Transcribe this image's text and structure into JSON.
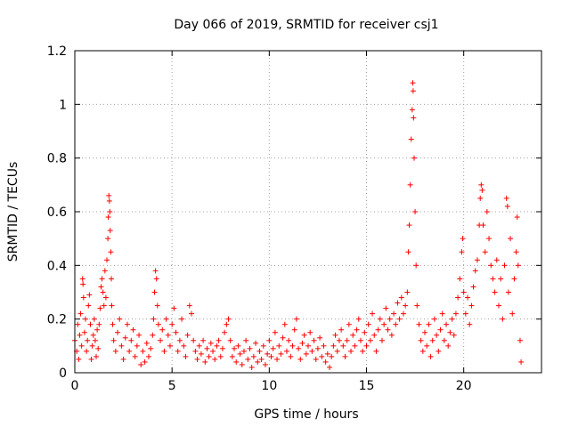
{
  "chart_data": {
    "type": "scatter",
    "title": "Day 066 of 2019, SRMTID for receiver csj1",
    "xlabel": "GPS time / hours",
    "ylabel": "SRMTID / TECUs",
    "xlim": [
      0,
      24
    ],
    "ylim": [
      0,
      1.2
    ],
    "xticks": [
      0,
      5,
      10,
      15,
      20
    ],
    "yticks": [
      0,
      0.2,
      0.4,
      0.6,
      0.8,
      1,
      1.2
    ],
    "xtick_labels": [
      "0",
      "5",
      "10",
      "15",
      "20"
    ],
    "ytick_labels": [
      "0",
      "0.2",
      "0.4",
      "0.6",
      "0.8",
      "1",
      "1.2"
    ],
    "grid": true,
    "marker": "+",
    "color": "#ff0000",
    "series": [
      {
        "name": "SRMTID",
        "points": [
          [
            0.0,
            0.12
          ],
          [
            0.1,
            0.08
          ],
          [
            0.15,
            0.18
          ],
          [
            0.2,
            0.05
          ],
          [
            0.25,
            0.14
          ],
          [
            0.3,
            0.22
          ],
          [
            0.35,
            0.1
          ],
          [
            0.4,
            0.35
          ],
          [
            0.42,
            0.33
          ],
          [
            0.45,
            0.28
          ],
          [
            0.5,
            0.15
          ],
          [
            0.55,
            0.2
          ],
          [
            0.6,
            0.08
          ],
          [
            0.65,
            0.12
          ],
          [
            0.7,
            0.25
          ],
          [
            0.75,
            0.29
          ],
          [
            0.8,
            0.18
          ],
          [
            0.85,
            0.05
          ],
          [
            0.9,
            0.1
          ],
          [
            0.95,
            0.14
          ],
          [
            1.0,
            0.2
          ],
          [
            1.05,
            0.12
          ],
          [
            1.1,
            0.06
          ],
          [
            1.15,
            0.16
          ],
          [
            1.2,
            0.09
          ],
          [
            1.25,
            0.18
          ],
          [
            1.3,
            0.24
          ],
          [
            1.35,
            0.32
          ],
          [
            1.4,
            0.35
          ],
          [
            1.45,
            0.3
          ],
          [
            1.5,
            0.25
          ],
          [
            1.55,
            0.38
          ],
          [
            1.6,
            0.28
          ],
          [
            1.65,
            0.42
          ],
          [
            1.7,
            0.5
          ],
          [
            1.72,
            0.58
          ],
          [
            1.75,
            0.66
          ],
          [
            1.78,
            0.64
          ],
          [
            1.8,
            0.6
          ],
          [
            1.82,
            0.53
          ],
          [
            1.85,
            0.45
          ],
          [
            1.88,
            0.35
          ],
          [
            1.9,
            0.25
          ],
          [
            1.95,
            0.18
          ],
          [
            2.0,
            0.12
          ],
          [
            2.1,
            0.08
          ],
          [
            2.2,
            0.15
          ],
          [
            2.3,
            0.2
          ],
          [
            2.4,
            0.1
          ],
          [
            2.5,
            0.05
          ],
          [
            2.6,
            0.13
          ],
          [
            2.7,
            0.18
          ],
          [
            2.8,
            0.08
          ],
          [
            2.9,
            0.12
          ],
          [
            3.0,
            0.16
          ],
          [
            3.1,
            0.06
          ],
          [
            3.2,
            0.1
          ],
          [
            3.3,
            0.14
          ],
          [
            3.4,
            0.03
          ],
          [
            3.5,
            0.08
          ],
          [
            3.6,
            0.04
          ],
          [
            3.7,
            0.11
          ],
          [
            3.8,
            0.06
          ],
          [
            3.9,
            0.09
          ],
          [
            4.0,
            0.14
          ],
          [
            4.05,
            0.2
          ],
          [
            4.1,
            0.3
          ],
          [
            4.15,
            0.38
          ],
          [
            4.2,
            0.35
          ],
          [
            4.25,
            0.25
          ],
          [
            4.3,
            0.18
          ],
          [
            4.4,
            0.12
          ],
          [
            4.5,
            0.16
          ],
          [
            4.6,
            0.08
          ],
          [
            4.7,
            0.2
          ],
          [
            4.8,
            0.14
          ],
          [
            4.9,
            0.1
          ],
          [
            5.0,
            0.18
          ],
          [
            5.1,
            0.24
          ],
          [
            5.2,
            0.15
          ],
          [
            5.3,
            0.08
          ],
          [
            5.4,
            0.12
          ],
          [
            5.5,
            0.2
          ],
          [
            5.6,
            0.1
          ],
          [
            5.7,
            0.06
          ],
          [
            5.8,
            0.14
          ],
          [
            5.9,
            0.25
          ],
          [
            6.0,
            0.22
          ],
          [
            6.1,
            0.12
          ],
          [
            6.2,
            0.08
          ],
          [
            6.3,
            0.05
          ],
          [
            6.4,
            0.1
          ],
          [
            6.5,
            0.07
          ],
          [
            6.6,
            0.12
          ],
          [
            6.7,
            0.04
          ],
          [
            6.8,
            0.09
          ],
          [
            6.9,
            0.06
          ],
          [
            7.0,
            0.11
          ],
          [
            7.1,
            0.08
          ],
          [
            7.2,
            0.05
          ],
          [
            7.3,
            0.1
          ],
          [
            7.4,
            0.12
          ],
          [
            7.5,
            0.06
          ],
          [
            7.6,
            0.09
          ],
          [
            7.7,
            0.15
          ],
          [
            7.8,
            0.18
          ],
          [
            7.9,
            0.2
          ],
          [
            8.0,
            0.12
          ],
          [
            8.1,
            0.06
          ],
          [
            8.2,
            0.09
          ],
          [
            8.3,
            0.04
          ],
          [
            8.4,
            0.1
          ],
          [
            8.5,
            0.07
          ],
          [
            8.6,
            0.03
          ],
          [
            8.7,
            0.08
          ],
          [
            8.8,
            0.12
          ],
          [
            8.9,
            0.05
          ],
          [
            9.0,
            0.09
          ],
          [
            9.1,
            0.02
          ],
          [
            9.2,
            0.06
          ],
          [
            9.3,
            0.11
          ],
          [
            9.4,
            0.04
          ],
          [
            9.5,
            0.08
          ],
          [
            9.6,
            0.05
          ],
          [
            9.7,
            0.1
          ],
          [
            9.8,
            0.03
          ],
          [
            9.9,
            0.07
          ],
          [
            10.0,
            0.12
          ],
          [
            10.1,
            0.06
          ],
          [
            10.2,
            0.09
          ],
          [
            10.3,
            0.15
          ],
          [
            10.4,
            0.05
          ],
          [
            10.5,
            0.1
          ],
          [
            10.6,
            0.07
          ],
          [
            10.7,
            0.13
          ],
          [
            10.8,
            0.18
          ],
          [
            10.9,
            0.08
          ],
          [
            11.0,
            0.12
          ],
          [
            11.1,
            0.06
          ],
          [
            11.2,
            0.1
          ],
          [
            11.3,
            0.16
          ],
          [
            11.4,
            0.2
          ],
          [
            11.5,
            0.09
          ],
          [
            11.6,
            0.05
          ],
          [
            11.7,
            0.11
          ],
          [
            11.8,
            0.14
          ],
          [
            11.9,
            0.07
          ],
          [
            12.0,
            0.1
          ],
          [
            12.1,
            0.15
          ],
          [
            12.2,
            0.08
          ],
          [
            12.3,
            0.12
          ],
          [
            12.4,
            0.05
          ],
          [
            12.5,
            0.09
          ],
          [
            12.6,
            0.13
          ],
          [
            12.7,
            0.06
          ],
          [
            12.8,
            0.1
          ],
          [
            12.9,
            0.04
          ],
          [
            13.0,
            0.07
          ],
          [
            13.1,
            0.02
          ],
          [
            13.2,
            0.06
          ],
          [
            13.3,
            0.1
          ],
          [
            13.4,
            0.14
          ],
          [
            13.5,
            0.08
          ],
          [
            13.6,
            0.12
          ],
          [
            13.7,
            0.16
          ],
          [
            13.8,
            0.1
          ],
          [
            13.9,
            0.06
          ],
          [
            14.0,
            0.12
          ],
          [
            14.1,
            0.18
          ],
          [
            14.2,
            0.08
          ],
          [
            14.3,
            0.14
          ],
          [
            14.4,
            0.1
          ],
          [
            14.5,
            0.16
          ],
          [
            14.6,
            0.2
          ],
          [
            14.7,
            0.12
          ],
          [
            14.8,
            0.08
          ],
          [
            14.9,
            0.15
          ],
          [
            15.0,
            0.1
          ],
          [
            15.1,
            0.18
          ],
          [
            15.2,
            0.12
          ],
          [
            15.3,
            0.22
          ],
          [
            15.4,
            0.14
          ],
          [
            15.5,
            0.08
          ],
          [
            15.6,
            0.16
          ],
          [
            15.7,
            0.2
          ],
          [
            15.8,
            0.12
          ],
          [
            15.9,
            0.18
          ],
          [
            16.0,
            0.24
          ],
          [
            16.1,
            0.16
          ],
          [
            16.2,
            0.2
          ],
          [
            16.3,
            0.14
          ],
          [
            16.4,
            0.22
          ],
          [
            16.5,
            0.18
          ],
          [
            16.6,
            0.26
          ],
          [
            16.7,
            0.2
          ],
          [
            16.8,
            0.28
          ],
          [
            16.9,
            0.22
          ],
          [
            17.0,
            0.25
          ],
          [
            17.1,
            0.3
          ],
          [
            17.15,
            0.45
          ],
          [
            17.2,
            0.55
          ],
          [
            17.25,
            0.7
          ],
          [
            17.3,
            0.87
          ],
          [
            17.35,
            0.98
          ],
          [
            17.38,
            1.08
          ],
          [
            17.4,
            1.05
          ],
          [
            17.42,
            0.95
          ],
          [
            17.45,
            0.8
          ],
          [
            17.5,
            0.6
          ],
          [
            17.55,
            0.4
          ],
          [
            17.6,
            0.25
          ],
          [
            17.7,
            0.18
          ],
          [
            17.8,
            0.12
          ],
          [
            17.9,
            0.08
          ],
          [
            18.0,
            0.15
          ],
          [
            18.1,
            0.1
          ],
          [
            18.2,
            0.18
          ],
          [
            18.3,
            0.06
          ],
          [
            18.4,
            0.12
          ],
          [
            18.5,
            0.2
          ],
          [
            18.6,
            0.14
          ],
          [
            18.7,
            0.08
          ],
          [
            18.8,
            0.16
          ],
          [
            18.9,
            0.22
          ],
          [
            19.0,
            0.12
          ],
          [
            19.1,
            0.18
          ],
          [
            19.2,
            0.1
          ],
          [
            19.3,
            0.15
          ],
          [
            19.4,
            0.2
          ],
          [
            19.5,
            0.14
          ],
          [
            19.6,
            0.22
          ],
          [
            19.7,
            0.28
          ],
          [
            19.8,
            0.35
          ],
          [
            19.9,
            0.45
          ],
          [
            19.95,
            0.5
          ],
          [
            20.0,
            0.3
          ],
          [
            20.1,
            0.22
          ],
          [
            20.2,
            0.28
          ],
          [
            20.3,
            0.18
          ],
          [
            20.4,
            0.25
          ],
          [
            20.5,
            0.32
          ],
          [
            20.6,
            0.38
          ],
          [
            20.7,
            0.42
          ],
          [
            20.8,
            0.55
          ],
          [
            20.85,
            0.65
          ],
          [
            20.9,
            0.7
          ],
          [
            20.95,
            0.68
          ],
          [
            21.0,
            0.55
          ],
          [
            21.1,
            0.45
          ],
          [
            21.2,
            0.6
          ],
          [
            21.3,
            0.5
          ],
          [
            21.4,
            0.4
          ],
          [
            21.5,
            0.35
          ],
          [
            21.6,
            0.3
          ],
          [
            21.7,
            0.42
          ],
          [
            21.8,
            0.25
          ],
          [
            21.9,
            0.35
          ],
          [
            22.0,
            0.2
          ],
          [
            22.1,
            0.4
          ],
          [
            22.2,
            0.65
          ],
          [
            22.25,
            0.62
          ],
          [
            22.3,
            0.3
          ],
          [
            22.4,
            0.5
          ],
          [
            22.5,
            0.22
          ],
          [
            22.6,
            0.35
          ],
          [
            22.7,
            0.45
          ],
          [
            22.75,
            0.58
          ],
          [
            22.8,
            0.4
          ],
          [
            22.9,
            0.12
          ],
          [
            22.95,
            0.04
          ]
        ]
      }
    ]
  }
}
